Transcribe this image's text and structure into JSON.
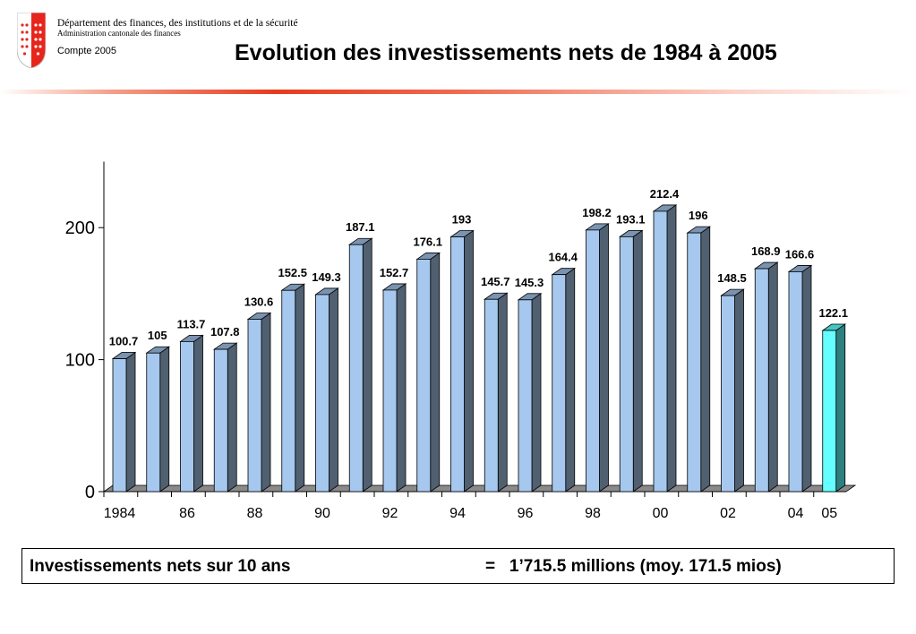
{
  "header": {
    "department": "Département des finances, des institutions et de la sécurité",
    "administration": "Administration cantonale des finances",
    "report": "Compte 2005",
    "title": "Evolution des investissements nets de 1984 à 2005"
  },
  "summary": {
    "label": "Investissements nets sur 10 ans",
    "value": "=   1’715.5 millions (moy. 171.5 mios)"
  },
  "colors": {
    "bar_front": "#a6c8ee",
    "bar_side": "#506070",
    "bar_top": "#7a93b0",
    "highlight_front": "#66ffff",
    "highlight_side": "#2e8080",
    "highlight_top": "#44c4c4",
    "floor": "#8a8a8a",
    "header_line": "#e83a1c"
  },
  "chart_data": {
    "type": "bar",
    "title": "Evolution des investissements nets de 1984 à 2005",
    "xlabel": "",
    "ylabel": "",
    "ylim": [
      0,
      250
    ],
    "yticks": [
      0,
      100,
      200
    ],
    "categories": [
      "1984",
      "1985",
      "1986",
      "1987",
      "1988",
      "1989",
      "1990",
      "1991",
      "1992",
      "1993",
      "1994",
      "1995",
      "1996",
      "1997",
      "1998",
      "1999",
      "2000",
      "2001",
      "2002",
      "2003",
      "2004",
      "2005"
    ],
    "x_tick_labels": [
      "1984",
      "86",
      "88",
      "90",
      "92",
      "94",
      "96",
      "98",
      "00",
      "02",
      "04",
      "05"
    ],
    "values": [
      100.7,
      105,
      113.7,
      107.8,
      130.6,
      152.5,
      149.3,
      187.1,
      152.7,
      176.1,
      193,
      145.7,
      145.3,
      164.4,
      198.2,
      193.1,
      212.4,
      196,
      148.5,
      168.9,
      166.6,
      122.1
    ],
    "data_labels": [
      "100.7",
      "105",
      "113.7",
      "107.8",
      "130.6",
      "152.5",
      "149.3",
      "187.1",
      "152.7",
      "176.1",
      "193",
      "145.7",
      "145.3",
      "164.4",
      "198.2",
      "193.1",
      "212.4",
      "196",
      "148.5",
      "168.9",
      "166.6",
      "122.1"
    ],
    "highlight_category": "2005",
    "grid": false,
    "legend": "none"
  }
}
